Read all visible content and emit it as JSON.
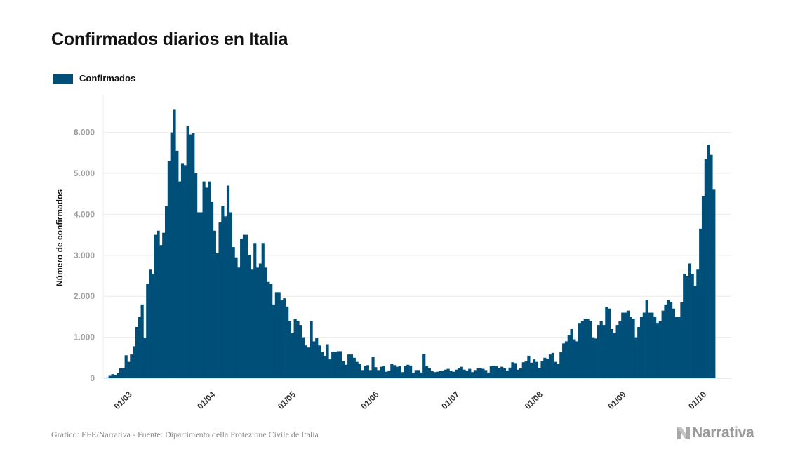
{
  "chart_data": {
    "type": "bar",
    "title": "Confirmados diarios en Italia",
    "legend": {
      "label": "Confirmados",
      "placement": "top-left"
    },
    "ylabel": "Número de confirmados",
    "xlabel": "",
    "ylim": [
      0,
      6900
    ],
    "yticks": [
      {
        "value": 0,
        "label": "0"
      },
      {
        "value": 1000,
        "label": "1.000"
      },
      {
        "value": 2000,
        "label": "2.000"
      },
      {
        "value": 3000,
        "label": "3.000"
      },
      {
        "value": 4000,
        "label": "4.000"
      },
      {
        "value": 5000,
        "label": "5.000"
      },
      {
        "value": 6000,
        "label": "6.000"
      }
    ],
    "xticks": [
      {
        "day": 0,
        "label": "01/03"
      },
      {
        "day": 31,
        "label": "01/04"
      },
      {
        "day": 61,
        "label": "01/05"
      },
      {
        "day": 92,
        "label": "01/06"
      },
      {
        "day": 122,
        "label": "01/07"
      },
      {
        "day": 153,
        "label": "01/08"
      },
      {
        "day": 184,
        "label": "01/09"
      },
      {
        "day": 214,
        "label": "01/10"
      }
    ],
    "x_start_day": -7,
    "x_end_day": 227,
    "first_bar_day": -6,
    "bar_color": "#004f78",
    "values": [
      20,
      60,
      100,
      80,
      120,
      250,
      240,
      560,
      400,
      580,
      780,
      1250,
      1500,
      1800,
      980,
      2300,
      2650,
      2550,
      3500,
      3600,
      3250,
      3550,
      4200,
      5300,
      6000,
      6550,
      5550,
      4800,
      5250,
      5200,
      6150,
      5950,
      5980,
      5000,
      4050,
      4050,
      4800,
      4650,
      4800,
      4300,
      3600,
      3050,
      3800,
      4200,
      3950,
      4700,
      4050,
      3200,
      2950,
      2700,
      3400,
      3500,
      3500,
      3000,
      2650,
      3300,
      2700,
      2800,
      3300,
      2700,
      2350,
      2300,
      1800,
      2100,
      2100,
      1900,
      1950,
      1750,
      1400,
      1100,
      1450,
      1400,
      1300,
      1000,
      800,
      750,
      1400,
      900,
      980,
      800,
      650,
      550,
      830,
      460,
      650,
      640,
      660,
      660,
      420,
      330,
      580,
      580,
      500,
      400,
      350,
      200,
      300,
      320,
      200,
      520,
      270,
      200,
      280,
      290,
      160,
      190,
      350,
      320,
      280,
      300,
      150,
      300,
      330,
      310,
      120,
      200,
      200,
      140,
      590,
      300,
      250,
      180,
      150,
      160,
      180,
      190,
      210,
      230,
      180,
      160,
      210,
      240,
      280,
      210,
      190,
      230,
      150,
      200,
      240,
      250,
      230,
      200,
      140,
      300,
      310,
      290,
      250,
      280,
      240,
      190,
      260,
      390,
      370,
      210,
      240,
      390,
      410,
      550,
      380,
      460,
      400,
      250,
      420,
      500,
      480,
      580,
      620,
      400,
      350,
      640,
      850,
      900,
      1050,
      1200,
      950,
      900,
      1350,
      1400,
      1450,
      1450,
      1400,
      1000,
      970,
      1300,
      1400,
      1300,
      1730,
      1700,
      1200,
      1100,
      1300,
      1400,
      1600,
      1600,
      1650,
      1500,
      1450,
      1000,
      1250,
      1500,
      1600,
      1900,
      1600,
      1600,
      1500,
      1350,
      1400,
      1650,
      1800,
      1900,
      1850,
      1700,
      1500,
      1500,
      1850,
      2550,
      2500,
      2800,
      2550,
      2250,
      2650,
      3650,
      4450,
      5350,
      5700,
      5450,
      4600
    ]
  },
  "footer": {
    "source": "Gráfico: EFE/Narrativa - Fuente: Dipartimento della Protezione Civile de Italia",
    "brand": "Narrativa"
  }
}
